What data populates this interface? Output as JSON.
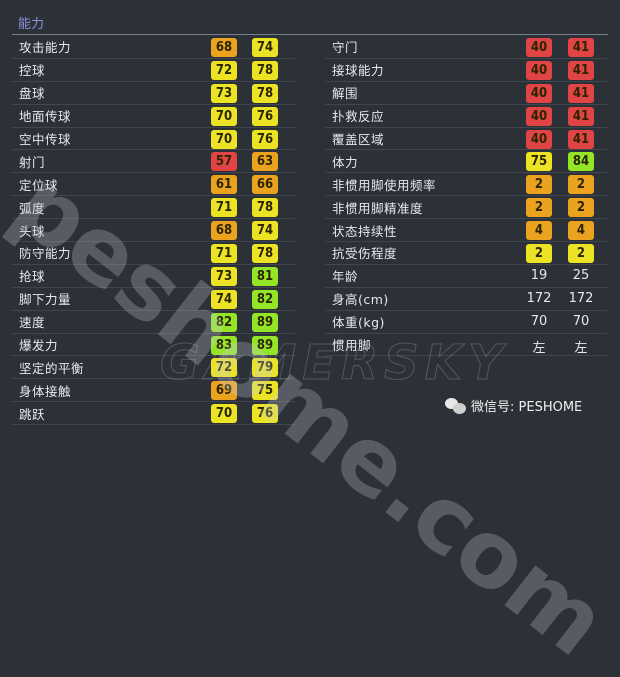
{
  "section_title": "能力",
  "colors": {
    "red": "#e04444",
    "orange": "#eba21e",
    "yellow": "#ece324",
    "green": "#93e526"
  },
  "left_stats": [
    {
      "label": "攻击能力",
      "v1": "68",
      "c1": "orange",
      "v2": "74",
      "c2": "yellow"
    },
    {
      "label": "控球",
      "v1": "72",
      "c1": "yellow",
      "v2": "78",
      "c2": "yellow"
    },
    {
      "label": "盘球",
      "v1": "73",
      "c1": "yellow",
      "v2": "78",
      "c2": "yellow"
    },
    {
      "label": "地面传球",
      "v1": "70",
      "c1": "yellow",
      "v2": "76",
      "c2": "yellow"
    },
    {
      "label": "空中传球",
      "v1": "70",
      "c1": "yellow",
      "v2": "76",
      "c2": "yellow"
    },
    {
      "label": "射门",
      "v1": "57",
      "c1": "red",
      "v2": "63",
      "c2": "orange"
    },
    {
      "label": "定位球",
      "v1": "61",
      "c1": "orange",
      "v2": "66",
      "c2": "orange"
    },
    {
      "label": "弧度",
      "v1": "71",
      "c1": "yellow",
      "v2": "78",
      "c2": "yellow"
    },
    {
      "label": "头球",
      "v1": "68",
      "c1": "orange",
      "v2": "74",
      "c2": "yellow"
    },
    {
      "label": "防守能力",
      "v1": "71",
      "c1": "yellow",
      "v2": "78",
      "c2": "yellow"
    },
    {
      "label": "抢球",
      "v1": "73",
      "c1": "yellow",
      "v2": "81",
      "c2": "green"
    },
    {
      "label": "脚下力量",
      "v1": "74",
      "c1": "yellow",
      "v2": "82",
      "c2": "green"
    },
    {
      "label": "速度",
      "v1": "82",
      "c1": "green",
      "v2": "89",
      "c2": "green"
    },
    {
      "label": "爆发力",
      "v1": "83",
      "c1": "green",
      "v2": "89",
      "c2": "green"
    },
    {
      "label": "坚定的平衡",
      "v1": "72",
      "c1": "yellow",
      "v2": "79",
      "c2": "yellow"
    },
    {
      "label": "身体接触",
      "v1": "69",
      "c1": "orange",
      "v2": "75",
      "c2": "yellow"
    },
    {
      "label": "跳跃",
      "v1": "70",
      "c1": "yellow",
      "v2": "76",
      "c2": "yellow"
    }
  ],
  "right_stats": [
    {
      "label": "守门",
      "v1": "40",
      "c1": "red",
      "v2": "41",
      "c2": "red"
    },
    {
      "label": "接球能力",
      "v1": "40",
      "c1": "red",
      "v2": "41",
      "c2": "red"
    },
    {
      "label": "解围",
      "v1": "40",
      "c1": "red",
      "v2": "41",
      "c2": "red"
    },
    {
      "label": "扑救反应",
      "v1": "40",
      "c1": "red",
      "v2": "41",
      "c2": "red"
    },
    {
      "label": "覆盖区域",
      "v1": "40",
      "c1": "red",
      "v2": "41",
      "c2": "red"
    },
    {
      "label": "体力",
      "v1": "75",
      "c1": "yellow",
      "v2": "84",
      "c2": "green"
    },
    {
      "label": "非惯用脚使用频率",
      "v1": "2",
      "c1": "orange",
      "v2": "2",
      "c2": "orange"
    },
    {
      "label": "非惯用脚精准度",
      "v1": "2",
      "c1": "orange",
      "v2": "2",
      "c2": "orange"
    },
    {
      "label": "状态持续性",
      "v1": "4",
      "c1": "orange",
      "v2": "4",
      "c2": "orange"
    },
    {
      "label": "抗受伤程度",
      "v1": "2",
      "c1": "yellow",
      "v2": "2",
      "c2": "yellow"
    },
    {
      "label": "年龄",
      "v1": "19",
      "v2": "25"
    },
    {
      "label": "身高(cm)",
      "v1": "172",
      "v2": "172"
    },
    {
      "label": "体重(kg)",
      "v1": "70",
      "v2": "70"
    },
    {
      "label": "惯用脚",
      "v1": "左",
      "v2": "左"
    }
  ],
  "watermarks": {
    "site": "peshome.com",
    "brand": "GAMERSKY"
  },
  "wechat": {
    "icon": "wechat-icon",
    "text": "微信号: PESHOME"
  }
}
